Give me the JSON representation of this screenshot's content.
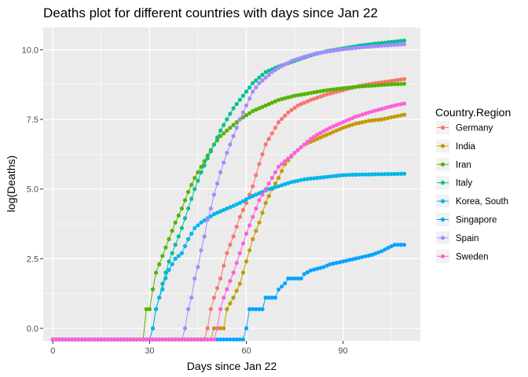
{
  "chart_data": {
    "type": "line",
    "title": "Deaths plot for different countries with days since Jan 22",
    "xlabel": "Days since Jan 22",
    "ylabel": "log(Deaths)",
    "xlim": [
      -3,
      114
    ],
    "ylim": [
      -0.45,
      10.8
    ],
    "x_ticks": [
      0,
      30,
      60,
      90
    ],
    "y_ticks": [
      0.0,
      2.5,
      5.0,
      7.5,
      10.0
    ],
    "y_tick_labels": [
      "0.0",
      "2.5",
      "5.0",
      "7.5",
      "10.0"
    ],
    "x_range": [
      0,
      109
    ],
    "floor_value": -0.4,
    "grid": true,
    "legend_title": "Country.Region",
    "legend_position": "right",
    "series": [
      {
        "name": "Germany",
        "color": "#F8766D",
        "start": 47,
        "points": [
          [
            48,
            0
          ],
          [
            49,
            0.69
          ],
          [
            50,
            1.1
          ],
          [
            52,
            1.79
          ],
          [
            54,
            2.7
          ],
          [
            56,
            3.3
          ],
          [
            58,
            4.0
          ],
          [
            60,
            4.5
          ],
          [
            62,
            5.1
          ],
          [
            64,
            5.9
          ],
          [
            66,
            6.6
          ],
          [
            68,
            7.0
          ],
          [
            70,
            7.4
          ],
          [
            73,
            7.75
          ],
          [
            76,
            8.0
          ],
          [
            80,
            8.2
          ],
          [
            85,
            8.4
          ],
          [
            90,
            8.55
          ],
          [
            95,
            8.7
          ],
          [
            100,
            8.8
          ],
          [
            105,
            8.88
          ],
          [
            109,
            8.95
          ]
        ]
      },
      {
        "name": "India",
        "color": "#C49A00",
        "start": 49,
        "points": [
          [
            50,
            0
          ],
          [
            53,
            0
          ],
          [
            54,
            0.69
          ],
          [
            56,
            1.1
          ],
          [
            58,
            1.6
          ],
          [
            60,
            2.4
          ],
          [
            62,
            3.2
          ],
          [
            64,
            3.8
          ],
          [
            66,
            4.5
          ],
          [
            68,
            5.0
          ],
          [
            70,
            5.4
          ],
          [
            72,
            5.9
          ],
          [
            75,
            6.3
          ],
          [
            78,
            6.6
          ],
          [
            82,
            6.8
          ],
          [
            86,
            7.0
          ],
          [
            90,
            7.2
          ],
          [
            94,
            7.35
          ],
          [
            98,
            7.45
          ],
          [
            102,
            7.5
          ],
          [
            106,
            7.6
          ],
          [
            109,
            7.67
          ]
        ]
      },
      {
        "name": "Iran",
        "color": "#53B400",
        "start": 28,
        "points": [
          [
            29,
            0.69
          ],
          [
            30,
            0.69
          ],
          [
            31,
            1.4
          ],
          [
            32,
            2.0
          ],
          [
            34,
            2.6
          ],
          [
            36,
            3.2
          ],
          [
            38,
            3.8
          ],
          [
            40,
            4.3
          ],
          [
            42,
            4.9
          ],
          [
            44,
            5.4
          ],
          [
            46,
            5.8
          ],
          [
            48,
            6.2
          ],
          [
            50,
            6.6
          ],
          [
            52,
            6.9
          ],
          [
            55,
            7.2
          ],
          [
            58,
            7.5
          ],
          [
            62,
            7.8
          ],
          [
            66,
            8.0
          ],
          [
            70,
            8.2
          ],
          [
            75,
            8.35
          ],
          [
            80,
            8.45
          ],
          [
            85,
            8.55
          ],
          [
            90,
            8.62
          ],
          [
            95,
            8.68
          ],
          [
            100,
            8.72
          ],
          [
            105,
            8.76
          ],
          [
            109,
            8.78
          ]
        ]
      },
      {
        "name": "Italy",
        "color": "#00C094",
        "start": 30,
        "points": [
          [
            31,
            0
          ],
          [
            32,
            0.69
          ],
          [
            33,
            1.1
          ],
          [
            34,
            1.6
          ],
          [
            35,
            2.0
          ],
          [
            36,
            2.4
          ],
          [
            38,
            3.0
          ],
          [
            40,
            3.6
          ],
          [
            42,
            4.3
          ],
          [
            44,
            5.0
          ],
          [
            46,
            5.6
          ],
          [
            48,
            6.1
          ],
          [
            50,
            6.6
          ],
          [
            52,
            7.1
          ],
          [
            54,
            7.5
          ],
          [
            56,
            7.9
          ],
          [
            58,
            8.2
          ],
          [
            60,
            8.5
          ],
          [
            62,
            8.8
          ],
          [
            64,
            9.0
          ],
          [
            66,
            9.2
          ],
          [
            70,
            9.4
          ],
          [
            75,
            9.6
          ],
          [
            80,
            9.8
          ],
          [
            85,
            9.95
          ],
          [
            90,
            10.05
          ],
          [
            95,
            10.15
          ],
          [
            100,
            10.22
          ],
          [
            105,
            10.28
          ],
          [
            109,
            10.33
          ]
        ]
      },
      {
        "name": "Korea, South",
        "color": "#00B6EB",
        "start": 30,
        "points": [
          [
            31,
            0
          ],
          [
            32,
            0.69
          ],
          [
            33,
            1.1
          ],
          [
            34,
            1.4
          ],
          [
            35,
            1.8
          ],
          [
            36,
            2.1
          ],
          [
            38,
            2.5
          ],
          [
            40,
            2.7
          ],
          [
            42,
            3.2
          ],
          [
            44,
            3.6
          ],
          [
            46,
            3.8
          ],
          [
            48,
            3.95
          ],
          [
            50,
            4.1
          ],
          [
            52,
            4.2
          ],
          [
            55,
            4.35
          ],
          [
            58,
            4.5
          ],
          [
            61,
            4.7
          ],
          [
            64,
            4.85
          ],
          [
            67,
            5.0
          ],
          [
            70,
            5.1
          ],
          [
            74,
            5.25
          ],
          [
            78,
            5.35
          ],
          [
            82,
            5.4
          ],
          [
            86,
            5.45
          ],
          [
            90,
            5.5
          ],
          [
            95,
            5.52
          ],
          [
            100,
            5.53
          ],
          [
            105,
            5.54
          ],
          [
            109,
            5.55
          ]
        ]
      },
      {
        "name": "Singapore",
        "color": "#06A4FF",
        "start": 59,
        "points": [
          [
            60,
            0
          ],
          [
            61,
            0.69
          ],
          [
            64,
            0.69
          ],
          [
            65,
            0.69
          ],
          [
            66,
            1.1
          ],
          [
            69,
            1.1
          ],
          [
            70,
            1.39
          ],
          [
            72,
            1.61
          ],
          [
            73,
            1.79
          ],
          [
            77,
            1.79
          ],
          [
            78,
            1.95
          ],
          [
            80,
            2.08
          ],
          [
            84,
            2.2
          ],
          [
            86,
            2.3
          ],
          [
            90,
            2.4
          ],
          [
            93,
            2.48
          ],
          [
            96,
            2.56
          ],
          [
            99,
            2.64
          ],
          [
            102,
            2.77
          ],
          [
            104,
            2.89
          ],
          [
            106,
            3.0
          ],
          [
            109,
            3.0
          ]
        ]
      },
      {
        "name": "Spain",
        "color": "#A58AFF",
        "start": 40,
        "points": [
          [
            41,
            0
          ],
          [
            42,
            0.69
          ],
          [
            43,
            1.1
          ],
          [
            44,
            1.79
          ],
          [
            45,
            2.2
          ],
          [
            46,
            2.8
          ],
          [
            47,
            3.3
          ],
          [
            48,
            3.9
          ],
          [
            49,
            4.3
          ],
          [
            50,
            4.8
          ],
          [
            52,
            5.6
          ],
          [
            54,
            6.3
          ],
          [
            56,
            6.9
          ],
          [
            58,
            7.5
          ],
          [
            60,
            8.0
          ],
          [
            62,
            8.5
          ],
          [
            64,
            8.8
          ],
          [
            66,
            9.0
          ],
          [
            68,
            9.2
          ],
          [
            70,
            9.35
          ],
          [
            74,
            9.6
          ],
          [
            78,
            9.75
          ],
          [
            82,
            9.88
          ],
          [
            86,
            9.95
          ],
          [
            90,
            10.02
          ],
          [
            95,
            10.08
          ],
          [
            100,
            10.13
          ],
          [
            105,
            10.17
          ],
          [
            109,
            10.2
          ]
        ]
      },
      {
        "name": "Sweden",
        "color": "#FB61D7",
        "start": 50,
        "points": [
          [
            51,
            0
          ],
          [
            52,
            0.69
          ],
          [
            53,
            1.1
          ],
          [
            54,
            1.4
          ],
          [
            56,
            2.0
          ],
          [
            58,
            2.7
          ],
          [
            60,
            3.4
          ],
          [
            62,
            4.0
          ],
          [
            64,
            4.6
          ],
          [
            66,
            5.0
          ],
          [
            68,
            5.4
          ],
          [
            70,
            5.8
          ],
          [
            72,
            6.0
          ],
          [
            74,
            6.2
          ],
          [
            76,
            6.4
          ],
          [
            78,
            6.6
          ],
          [
            80,
            6.8
          ],
          [
            82,
            6.95
          ],
          [
            86,
            7.2
          ],
          [
            90,
            7.4
          ],
          [
            94,
            7.6
          ],
          [
            98,
            7.75
          ],
          [
            102,
            7.88
          ],
          [
            106,
            8.0
          ],
          [
            109,
            8.07
          ]
        ]
      }
    ]
  }
}
